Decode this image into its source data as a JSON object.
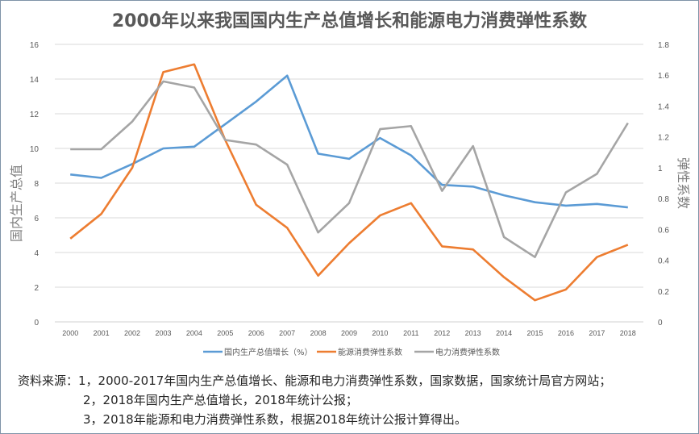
{
  "chart_data": {
    "type": "line",
    "title": "2000年以来我国国内生产总值增长和能源电力消费弹性系数",
    "xlabel": "",
    "ylabel": "国内生产总值",
    "y2label": "弹性系数",
    "categories": [
      "2000",
      "2001",
      "2002",
      "2003",
      "2004",
      "2005",
      "2006",
      "2007",
      "2008",
      "2009",
      "2010",
      "2011",
      "2012",
      "2013",
      "2014",
      "2015",
      "2016",
      "2017",
      "2018"
    ],
    "ylim": [
      0,
      16
    ],
    "y2lim": [
      0,
      1.8
    ],
    "yticks": [
      "0",
      "2",
      "4",
      "6",
      "8",
      "10",
      "12",
      "14",
      "16"
    ],
    "y2ticks": [
      "0",
      "0.2",
      "0.4",
      "0.6",
      "0.8",
      "1",
      "1.2",
      "1.4",
      "1.6",
      "1.8"
    ],
    "grid": true,
    "legend_position": "bottom",
    "series": [
      {
        "name": "国内生产总值增长（%）",
        "axis": "left",
        "color": "#5b9bd5",
        "values": [
          8.5,
          8.3,
          9.1,
          10.0,
          10.1,
          11.4,
          12.7,
          14.2,
          9.7,
          9.4,
          10.6,
          9.6,
          7.9,
          7.8,
          7.3,
          6.9,
          6.7,
          6.8,
          6.6
        ]
      },
      {
        "name": "能源消费弹性系数",
        "axis": "right",
        "color": "#ed7d31",
        "values": [
          0.54,
          0.7,
          1.0,
          1.62,
          1.67,
          1.18,
          0.76,
          0.61,
          0.3,
          0.51,
          0.69,
          0.77,
          0.49,
          0.47,
          0.29,
          0.14,
          0.21,
          0.42,
          0.5
        ]
      },
      {
        "name": "电力消费弹性系数",
        "axis": "right",
        "color": "#a5a5a5",
        "values": [
          1.12,
          1.12,
          1.3,
          1.56,
          1.52,
          1.18,
          1.15,
          1.02,
          0.58,
          0.77,
          1.25,
          1.27,
          0.85,
          1.14,
          0.55,
          0.42,
          0.84,
          0.96,
          1.29
        ]
      }
    ]
  },
  "source": {
    "lines": [
      "资料来源：1，2000-2017年国内生产总值增长、能源和电力消费弹性系数，国家数据，国家统计局官方网站；",
      "2，2018年国内生产总值增长，2018年统计公报；",
      "3，2018年能源和电力消费弹性系数，根据2018年统计公报计算得出。"
    ]
  }
}
